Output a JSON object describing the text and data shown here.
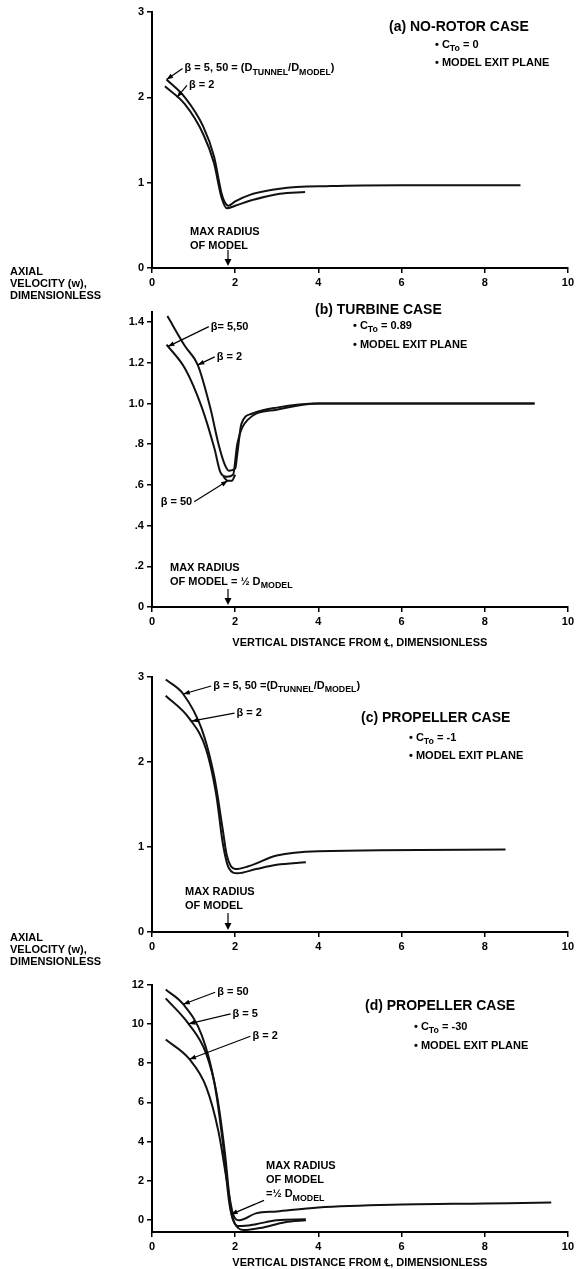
{
  "chart_data": [
    {
      "type": "line",
      "title": "(a) NO-ROTOR CASE",
      "ylabel": "AXIAL VELOCITY (w), DIMENSIONLESS",
      "xlim": [
        0,
        10
      ],
      "xticks": [
        0,
        2,
        4,
        6,
        8,
        10
      ],
      "ylim": [
        0,
        3
      ],
      "yticks": [
        0,
        1,
        2,
        3
      ],
      "marker": "none",
      "line_style": "solid",
      "series": [
        {
          "color": "#111111",
          "x": [
            0.35,
            0.79,
            1.23,
            1.49,
            1.67,
            1.75,
            1.84,
            2.0,
            2.37,
            3.07,
            4.3,
            6.0,
            8.86
          ],
          "values": [
            2.21,
            2.0,
            1.66,
            1.31,
            0.88,
            0.77,
            0.73,
            0.78,
            0.86,
            0.93,
            0.96,
            0.97,
            0.97
          ]
        },
        {
          "color": "#111111",
          "x": [
            0.31,
            0.79,
            1.23,
            1.49,
            1.67,
            1.8,
            2.0,
            2.37,
            3.07,
            3.68
          ],
          "values": [
            2.13,
            1.92,
            1.57,
            1.23,
            0.83,
            0.7,
            0.73,
            0.79,
            0.87,
            0.89
          ]
        }
      ],
      "annotations": [
        {
          "text": "β = 5, 50 = (D$_{TUNNEL}$/D$_{MODEL}$)",
          "x": 0.35,
          "y": 2.21
        },
        {
          "text": "β = 2",
          "x": 0.6,
          "y": 2.0
        },
        "MAX RADIUS\nOF MODEL",
        "• C$_{To}$ = 0",
        "• MODEL EXIT PLANE"
      ]
    },
    {
      "type": "line",
      "title": "(b) TURBINE CASE",
      "xlabel": "VERTICAL DISTANCE FROM ℄, DIMENSIONLESS",
      "xlim": [
        0,
        10
      ],
      "xticks": [
        0,
        2,
        4,
        6,
        8,
        10
      ],
      "ylim": [
        0,
        1.45
      ],
      "yticks": [
        0,
        {
          "value": 0.2,
          "label": ".2"
        },
        {
          "value": 0.4,
          "label": ".4"
        },
        {
          "value": 0.6,
          "label": ".6"
        },
        {
          "value": 0.8,
          "label": ".8"
        },
        {
          "value": 1,
          "label": "1.0"
        },
        1.2,
        1.4
      ],
      "marker": "none",
      "line_style": "solid",
      "series": [
        {
          "color": "#111111",
          "x": [
            0.37,
            0.8,
            1.1,
            1.4,
            1.6,
            1.75,
            1.85,
            2.0,
            2.05,
            2.15,
            2.4,
            3.0,
            4.0,
            9.2
          ],
          "values": [
            1.43,
            1.28,
            1.19,
            0.98,
            0.8,
            0.7,
            0.67,
            0.68,
            0.75,
            0.9,
            0.95,
            0.98,
            1.0,
            1.0
          ]
        },
        {
          "color": "#111111",
          "x": [
            0.35,
            0.8,
            1.2,
            1.5,
            1.65,
            1.8,
            1.95,
            2.05,
            2.3,
            3.0,
            4.0,
            9.2
          ],
          "values": [
            1.29,
            1.17,
            0.98,
            0.78,
            0.66,
            0.64,
            0.65,
            0.8,
            0.92,
            0.97,
            1.0,
            1.0
          ]
        },
        {
          "color": "#111111",
          "x": [
            1.72,
            1.82,
            1.92,
            2.0
          ],
          "values": [
            0.64,
            0.62,
            0.62,
            0.65
          ]
        }
      ],
      "annotations": [
        {
          "text": "β= 5,50",
          "x": 0.38,
          "y": 1.28
        },
        {
          "text": "β = 2",
          "x": 1.1,
          "y": 1.19
        },
        {
          "text": "β = 50",
          "x": 1.82,
          "y": 0.62
        },
        "MAX RADIUS\nOF MODEL = ½ D$_{MODEL}$",
        "• C$_{To}$ = 0.89",
        "• MODEL EXIT PLANE"
      ]
    },
    {
      "type": "line",
      "title": "(c) PROPELLER CASE",
      "ylabel": "AXIAL VELOCITY (w), DIMENSIONLESS",
      "xlim": [
        0,
        10
      ],
      "xticks": [
        0,
        2,
        4,
        6,
        8,
        10
      ],
      "ylim": [
        0,
        3
      ],
      "yticks": [
        0,
        1,
        2,
        3
      ],
      "marker": "none",
      "line_style": "solid",
      "series": [
        {
          "color": "#111111",
          "x": [
            0.33,
            0.75,
            1.2,
            1.5,
            1.7,
            1.8,
            2.0,
            2.3,
            3.0,
            4.0,
            8.5
          ],
          "values": [
            2.97,
            2.8,
            2.38,
            1.82,
            1.21,
            0.9,
            0.74,
            0.77,
            0.9,
            0.95,
            0.97
          ]
        },
        {
          "color": "#111111",
          "x": [
            0.33,
            0.9,
            1.3,
            1.55,
            1.7,
            1.85,
            2.05,
            2.5,
            3.0,
            3.7
          ],
          "values": [
            2.78,
            2.51,
            2.15,
            1.6,
            1.05,
            0.75,
            0.69,
            0.74,
            0.79,
            0.82
          ]
        }
      ],
      "annotations": [
        {
          "text": "β = 5, 50 =(D$_{TUNNEL}$/D$_{MODEL}$)",
          "x": 0.75,
          "y": 2.8
        },
        {
          "text": "β = 2",
          "x": 0.95,
          "y": 2.48
        },
        "MAX RADIUS\nOF MODEL",
        "• C$_{To}$ = -1",
        "• MODEL EXIT PLANE"
      ]
    },
    {
      "type": "line",
      "title": "(d) PROPELLER CASE",
      "xlabel": "VERTICAL DISTANCE FROM ℄, DIMENSIONLESS",
      "xlim": [
        0,
        10
      ],
      "xticks": [
        0,
        2,
        4,
        6,
        8,
        10
      ],
      "ylim": [
        -0.6,
        12
      ],
      "yticks": [
        0,
        2,
        4,
        6,
        8,
        10,
        12
      ],
      "marker": "none",
      "line_style": "solid",
      "series": [
        {
          "color": "#111111",
          "x": [
            0.33,
            0.75,
            1.2,
            1.5,
            1.7,
            1.85,
            1.95,
            2.1,
            2.5,
            3.0,
            3.7
          ],
          "values": [
            11.75,
            11.0,
            9.4,
            7.0,
            4.0,
            1.0,
            0,
            -0.3,
            -0.2,
            0,
            0.05
          ]
        },
        {
          "color": "#111111",
          "x": [
            0.33,
            0.88,
            1.3,
            1.55,
            1.75,
            1.9,
            2.0,
            2.2,
            2.6,
            3.2,
            3.7
          ],
          "values": [
            11.3,
            10.0,
            8.5,
            6.5,
            3.5,
            0.5,
            -0.2,
            -0.5,
            -0.4,
            -0.1,
            0
          ]
        },
        {
          "color": "#111111",
          "x": [
            0.33,
            0.9,
            1.3,
            1.6,
            1.8,
            1.95,
            2.1,
            2.5,
            3.0,
            4.0,
            6.0,
            8.0,
            9.6
          ],
          "values": [
            9.2,
            8.2,
            6.8,
            4.5,
            2.0,
            0.3,
            0,
            0.35,
            0.45,
            0.65,
            0.8,
            0.85,
            0.9
          ]
        }
      ],
      "annotations": [
        {
          "text": "β = 50",
          "x": 0.75,
          "y": 11.0
        },
        {
          "text": "β = 5",
          "x": 0.88,
          "y": 10.0
        },
        {
          "text": "β = 2",
          "x": 0.9,
          "y": 8.2
        },
        {
          "text": "MAX RADIUS\nOF MODEL\n=½ D$_{MODEL}$",
          "x": 1.9,
          "y": 0.3
        },
        "• C$_{To}$ = -30",
        "• MODEL EXIT PLANE"
      ]
    }
  ]
}
